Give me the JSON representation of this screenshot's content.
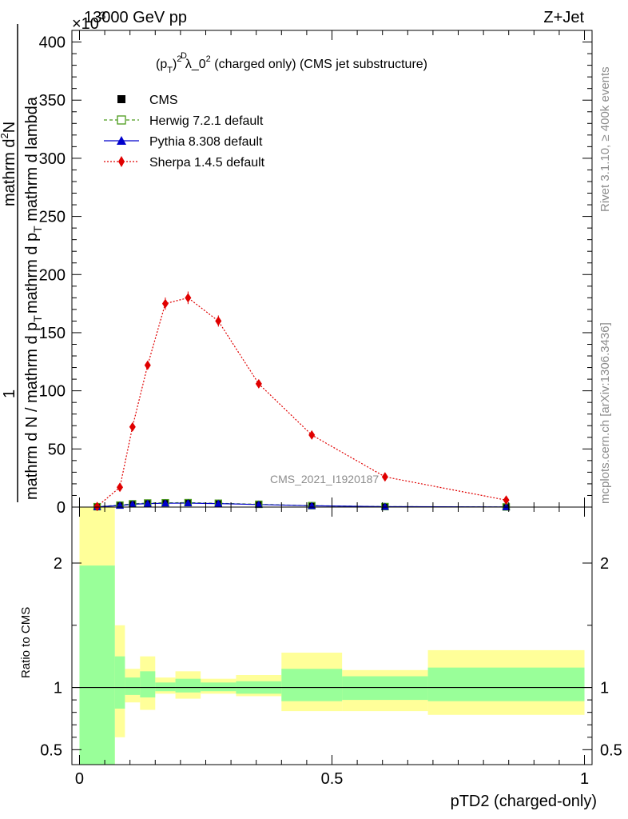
{
  "header": {
    "left": "13000 GeV pp",
    "right": "Z+Jet",
    "exponent": "×10",
    "exponent_power": "-3",
    "plot_title_prefix": "(p",
    "plot_title_sup": "D",
    "plot_title_sub": "T",
    "plot_title_pow": "2",
    "plot_title_mid": " λ_0",
    "plot_title_pow2": "2",
    "plot_title_suffix": " (charged only) (CMS jet substructure)",
    "watermark": "CMS_2021_I1920187"
  },
  "side_labels": {
    "rivet": "Rivet 3.1.10, ≥ 400k events",
    "mcplots": "mcplots.cern.ch [arXiv:1306.3436]"
  },
  "y_axis_label": {
    "one": "1",
    "denominator": "mathrm d N / mathrm d p",
    "denominator_sub": "T",
    "numerator_top": "mathrm d",
    "numerator_top_sup": "2",
    "numerator_top_end": "N",
    "numerator_bottom": "mathrm d p",
    "numerator_bottom_sub": "T",
    "numerator_bottom_end": " mathrm d lambda"
  },
  "ratio_label": "Ratio to CMS",
  "x_label": "pTD2 (charged-only)",
  "legend": [
    {
      "name": "CMS",
      "color": "#000000",
      "marker": "square"
    },
    {
      "name": "Herwig 7.2.1 default",
      "color": "#4a9a1a",
      "marker": "open-square"
    },
    {
      "name": "Pythia 8.308 default",
      "color": "#0000cc",
      "marker": "triangle"
    },
    {
      "name": "Sherpa 1.4.5 default",
      "color": "#e00000",
      "marker": "diamond"
    }
  ],
  "chart_data": {
    "type": "line",
    "main": {
      "ylim": [
        0,
        410
      ],
      "yticks": [
        0,
        50,
        100,
        150,
        200,
        250,
        300,
        350,
        400
      ],
      "ytick_labels": [
        "0",
        "50",
        "100",
        "150",
        "200",
        "250",
        "300",
        "350",
        "400"
      ],
      "xlim": [
        -0.015,
        1.015
      ],
      "xticks": [
        0,
        0.5,
        1
      ],
      "xtick_labels": [
        "0",
        "0.5",
        "1"
      ]
    },
    "bin_edges": [
      0.0,
      0.07,
      0.09,
      0.12,
      0.15,
      0.19,
      0.24,
      0.31,
      0.4,
      0.52,
      0.69,
      1.0
    ],
    "x": [
      0.035,
      0.08,
      0.105,
      0.135,
      0.17,
      0.215,
      0.275,
      0.355,
      0.46,
      0.605,
      0.845
    ],
    "series": [
      {
        "name": "CMS",
        "values": [
          0.2,
          1.5,
          2.5,
          3.2,
          3.5,
          3.6,
          3.2,
          2.4,
          1.2,
          0.4,
          0.1
        ]
      },
      {
        "name": "Herwig 7.2.1 default",
        "values": [
          0.3,
          1.7,
          2.8,
          3.5,
          3.7,
          3.8,
          3.3,
          2.4,
          1.2,
          0.4,
          0.1
        ]
      },
      {
        "name": "Pythia 8.308 default",
        "values": [
          0.2,
          1.4,
          2.4,
          3.0,
          3.3,
          3.4,
          3.0,
          2.2,
          1.1,
          0.4,
          0.1
        ]
      },
      {
        "name": "Sherpa 1.4.5 default",
        "values": [
          0.5,
          17,
          69,
          122,
          175,
          180,
          160,
          106,
          62,
          26,
          6
        ]
      }
    ],
    "ratio": {
      "ylim": [
        0.38,
        2.45
      ],
      "yticks": [
        0.5,
        1,
        2
      ],
      "ytick_labels": [
        "0.5",
        "1",
        "2"
      ],
      "yellow_band_lo": [
        0.35,
        0.6,
        0.88,
        0.82,
        0.95,
        0.91,
        0.95,
        0.93,
        0.81,
        0.81,
        0.78
      ],
      "yellow_band_hi": [
        2.6,
        1.5,
        1.15,
        1.25,
        1.08,
        1.13,
        1.07,
        1.1,
        1.28,
        1.14,
        1.3
      ],
      "green_band_lo": [
        0.35,
        0.83,
        0.94,
        0.92,
        0.97,
        0.96,
        0.97,
        0.95,
        0.89,
        0.9,
        0.89
      ],
      "green_band_hi": [
        1.98,
        1.25,
        1.08,
        1.13,
        1.04,
        1.07,
        1.04,
        1.05,
        1.15,
        1.09,
        1.16
      ]
    }
  }
}
